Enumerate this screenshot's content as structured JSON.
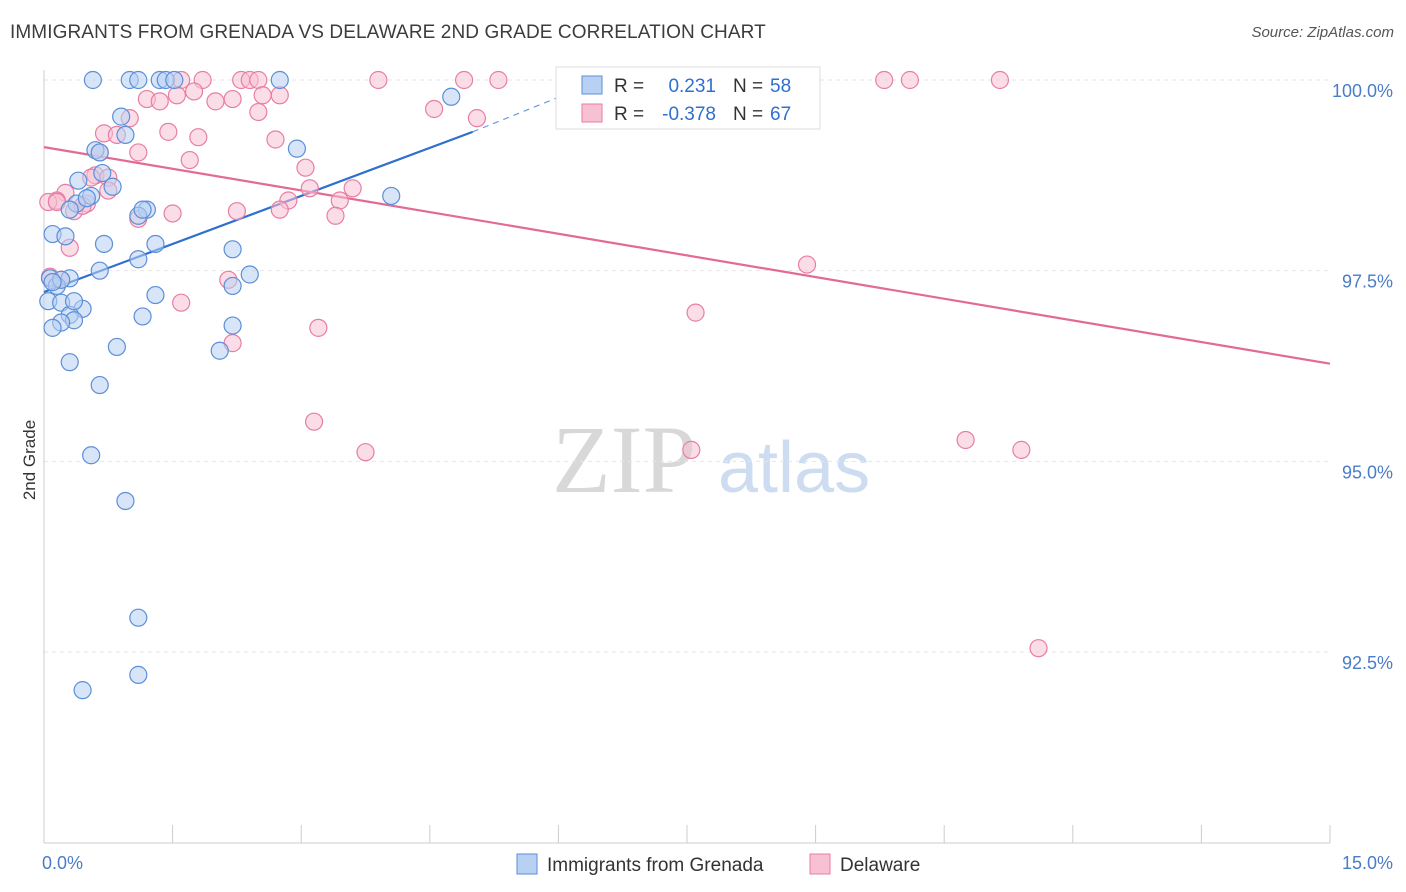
{
  "title": "IMMIGRANTS FROM GRENADA VS DELAWARE 2ND GRADE CORRELATION CHART",
  "source": "Source: ZipAtlas.com",
  "watermark": {
    "zip": "ZIP",
    "atlas": "atlas"
  },
  "colors": {
    "blue": "#5b8fd9",
    "blue_fill": "#b8d0f2",
    "blue_line": "#2f6fcf",
    "pink": "#e87ea3",
    "pink_fill": "#f7c1d3",
    "pink_line": "#e36a96",
    "grid": "#e6e6e6",
    "axis": "#cccccc"
  },
  "chart_data": {
    "type": "scatter",
    "title": "IMMIGRANTS FROM GRENADA VS DELAWARE 2ND GRADE CORRELATION CHART",
    "xlabel": "",
    "ylabel": "2nd Grade",
    "xlim": [
      0,
      15
    ],
    "ylim": [
      90.5,
      100.4
    ],
    "x_tick_labels": [
      "0.0%",
      "15.0%"
    ],
    "y_ticks": [
      100.0,
      97.5,
      95.0,
      92.5
    ],
    "y_tick_labels": [
      "100.0%",
      "97.5%",
      "95.0%",
      "92.5%"
    ],
    "grid": true,
    "legend": {
      "position": "top-center",
      "entries": [
        {
          "r_label": "R =",
          "r_value": "0.231",
          "n_label": "N =",
          "n_value": "58"
        },
        {
          "r_label": "R =",
          "r_value": "-0.378",
          "n_label": "N =",
          "n_value": "67"
        }
      ]
    },
    "bottom_legend": [
      "Immigrants from Grenada",
      "Delaware"
    ],
    "series": [
      {
        "name": "Immigrants from Grenada",
        "color": "#5b8fd9",
        "trend": {
          "x": [
            0.0,
            5.0
          ],
          "y": [
            97.22,
            99.32
          ],
          "dashed_to": [
            6.5,
            100.0
          ]
        },
        "points": [
          [
            0.57,
            100.0
          ],
          [
            1.0,
            100.0
          ],
          [
            1.1,
            100.0
          ],
          [
            1.35,
            100.0
          ],
          [
            1.42,
            100.0
          ],
          [
            1.52,
            100.0
          ],
          [
            2.75,
            100.0
          ],
          [
            4.75,
            99.78
          ],
          [
            0.9,
            99.52
          ],
          [
            0.95,
            99.28
          ],
          [
            0.6,
            99.08
          ],
          [
            0.65,
            99.05
          ],
          [
            0.68,
            98.78
          ],
          [
            0.4,
            98.68
          ],
          [
            0.8,
            98.6
          ],
          [
            1.2,
            98.3
          ],
          [
            1.1,
            98.22
          ],
          [
            0.55,
            98.48
          ],
          [
            4.05,
            98.48
          ],
          [
            0.38,
            98.38
          ],
          [
            0.1,
            97.98
          ],
          [
            0.25,
            97.95
          ],
          [
            0.7,
            97.85
          ],
          [
            1.3,
            97.85
          ],
          [
            2.2,
            97.78
          ],
          [
            1.1,
            97.65
          ],
          [
            0.65,
            97.5
          ],
          [
            2.4,
            97.45
          ],
          [
            0.3,
            97.4
          ],
          [
            0.07,
            97.4
          ],
          [
            0.15,
            97.3
          ],
          [
            0.05,
            97.1
          ],
          [
            0.2,
            97.08
          ],
          [
            1.3,
            97.18
          ],
          [
            0.45,
            97.0
          ],
          [
            0.3,
            96.92
          ],
          [
            0.35,
            96.85
          ],
          [
            0.2,
            96.82
          ],
          [
            1.15,
            96.9
          ],
          [
            0.1,
            96.75
          ],
          [
            2.2,
            96.78
          ],
          [
            0.85,
            96.5
          ],
          [
            2.05,
            96.45
          ],
          [
            0.3,
            96.3
          ],
          [
            0.65,
            96.0
          ],
          [
            0.55,
            95.08
          ],
          [
            0.95,
            94.48
          ],
          [
            1.1,
            92.95
          ],
          [
            1.1,
            92.2
          ],
          [
            0.45,
            92.0
          ],
          [
            2.95,
            99.1
          ],
          [
            2.2,
            97.3
          ],
          [
            0.2,
            97.38
          ],
          [
            0.5,
            98.45
          ],
          [
            1.15,
            98.3
          ],
          [
            0.3,
            98.3
          ],
          [
            0.1,
            97.35
          ],
          [
            0.35,
            97.1
          ]
        ]
      },
      {
        "name": "Delaware",
        "color": "#e87ea3",
        "trend": {
          "x": [
            0.0,
            15.0
          ],
          "y": [
            99.12,
            96.28
          ]
        },
        "points": [
          [
            1.6,
            100.0
          ],
          [
            1.85,
            100.0
          ],
          [
            2.3,
            100.0
          ],
          [
            2.4,
            100.0
          ],
          [
            2.5,
            100.0
          ],
          [
            3.9,
            100.0
          ],
          [
            4.9,
            100.0
          ],
          [
            5.3,
            100.0
          ],
          [
            9.8,
            100.0
          ],
          [
            10.1,
            100.0
          ],
          [
            11.15,
            100.0
          ],
          [
            1.75,
            99.85
          ],
          [
            1.55,
            99.8
          ],
          [
            2.75,
            99.8
          ],
          [
            1.2,
            99.75
          ],
          [
            1.35,
            99.72
          ],
          [
            2.0,
            99.72
          ],
          [
            2.2,
            99.75
          ],
          [
            2.55,
            99.8
          ],
          [
            4.55,
            99.62
          ],
          [
            2.5,
            99.58
          ],
          [
            5.05,
            99.5
          ],
          [
            1.0,
            99.5
          ],
          [
            1.45,
            99.32
          ],
          [
            0.7,
            99.3
          ],
          [
            0.85,
            99.28
          ],
          [
            1.8,
            99.25
          ],
          [
            2.7,
            99.22
          ],
          [
            1.1,
            99.05
          ],
          [
            0.65,
            99.05
          ],
          [
            1.7,
            98.95
          ],
          [
            3.05,
            98.85
          ],
          [
            0.6,
            98.75
          ],
          [
            0.75,
            98.72
          ],
          [
            0.25,
            98.52
          ],
          [
            0.75,
            98.55
          ],
          [
            3.6,
            98.58
          ],
          [
            3.1,
            98.58
          ],
          [
            0.15,
            98.42
          ],
          [
            0.05,
            98.4
          ],
          [
            3.45,
            98.42
          ],
          [
            2.85,
            98.42
          ],
          [
            0.5,
            98.38
          ],
          [
            0.35,
            98.28
          ],
          [
            1.5,
            98.25
          ],
          [
            2.25,
            98.28
          ],
          [
            3.4,
            98.22
          ],
          [
            2.75,
            98.3
          ],
          [
            1.1,
            98.18
          ],
          [
            0.3,
            97.8
          ],
          [
            8.9,
            97.58
          ],
          [
            2.15,
            97.38
          ],
          [
            1.6,
            97.08
          ],
          [
            7.6,
            96.95
          ],
          [
            3.2,
            96.75
          ],
          [
            2.2,
            96.55
          ],
          [
            3.15,
            95.52
          ],
          [
            3.75,
            95.12
          ],
          [
            7.55,
            95.15
          ],
          [
            10.75,
            95.28
          ],
          [
            11.4,
            95.15
          ],
          [
            11.6,
            92.55
          ],
          [
            0.07,
            97.42
          ],
          [
            0.2,
            97.38
          ],
          [
            0.15,
            98.4
          ],
          [
            0.45,
            98.35
          ],
          [
            0.55,
            98.72
          ]
        ]
      }
    ]
  }
}
